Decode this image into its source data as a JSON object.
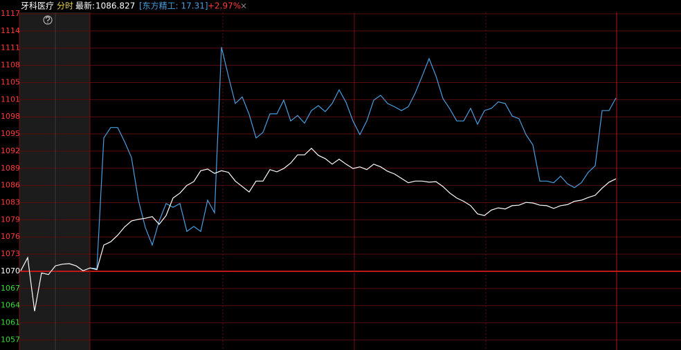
{
  "chart_data": {
    "type": "line",
    "title": "牙科医疗",
    "mode": "分时",
    "latest_label": "最新:",
    "latest": 1086.827,
    "compare_label": "[东方精工: 17.31]",
    "compare_change": {
      "value": 2.97,
      "label": "+2.97%"
    },
    "close_symbol": "×",
    "base": 1070,
    "ylim": [
      1055.6,
      1117.1
    ],
    "yticks": [
      {
        "value": 1117.1,
        "label": "1117"
      },
      {
        "value": 1113.96,
        "label": "1114"
      },
      {
        "value": 1110.82,
        "label": "1111"
      },
      {
        "value": 1107.68,
        "label": "1108"
      },
      {
        "value": 1104.54,
        "label": "1105"
      },
      {
        "value": 1101.4,
        "label": "1101"
      },
      {
        "value": 1098.26,
        "label": "1098"
      },
      {
        "value": 1095.12,
        "label": "1095"
      },
      {
        "value": 1091.98,
        "label": "1092"
      },
      {
        "value": 1088.84,
        "label": "1089"
      },
      {
        "value": 1085.7,
        "label": "1086"
      },
      {
        "value": 1082.56,
        "label": "1083"
      },
      {
        "value": 1079.42,
        "label": "1079"
      },
      {
        "value": 1076.28,
        "label": "1076"
      },
      {
        "value": 1073.14,
        "label": "1073"
      },
      1070,
      {
        "value": 1066.86,
        "label": "1067"
      },
      {
        "value": 1063.72,
        "label": "1064"
      },
      {
        "value": 1060.58,
        "label": "1061"
      },
      {
        "value": 1057.44,
        "label": "1057"
      }
    ],
    "grid": true,
    "series": [
      {
        "color": "#ffffff",
        "values": [
          1070.1,
          1072.5,
          1062.7,
          1069.7,
          1069.4,
          1071.0,
          1071.3,
          1071.4,
          1071.0,
          1070.1,
          1070.6,
          1070.3,
          1074.8,
          1075.4,
          1076.6,
          1078.1,
          1079.2,
          1079.5,
          1079.7,
          1080.0,
          1078.6,
          1080.2,
          1083.4,
          1084.3,
          1085.7,
          1086.4,
          1088.4,
          1088.7,
          1087.9,
          1088.4,
          1088.1,
          1086.5,
          1085.5,
          1084.5,
          1086.5,
          1086.5,
          1088.6,
          1088.2,
          1088.8,
          1089.8,
          1091.3,
          1091.3,
          1092.5,
          1091.2,
          1090.6,
          1089.6,
          1090.5,
          1089.6,
          1088.8,
          1089.1,
          1088.6,
          1089.6,
          1089.1,
          1088.3,
          1087.8,
          1087.0,
          1086.2,
          1086.5,
          1086.5,
          1086.3,
          1086.4,
          1085.5,
          1084.3,
          1083.4,
          1082.8,
          1082.0,
          1080.5,
          1080.2,
          1081.2,
          1081.6,
          1081.4,
          1082.0,
          1082.1,
          1082.6,
          1082.5,
          1082.1,
          1082.0,
          1081.5,
          1082.0,
          1082.2,
          1082.8,
          1083.0,
          1083.5,
          1083.9,
          1085.2,
          1086.3,
          1086.9
        ]
      },
      {
        "color": "#4a9fe0",
        "values": [
          null,
          null,
          null,
          null,
          null,
          null,
          null,
          null,
          null,
          null,
          1070.6,
          1070.5,
          1094.4,
          1096.3,
          1096.3,
          1093.7,
          1090.8,
          1083.0,
          1078.0,
          1074.8,
          1079.2,
          1082.4,
          1081.7,
          1082.4,
          1077.3,
          1078.2,
          1077.3,
          1083.0,
          1080.7,
          1111.0,
          1105.7,
          1100.7,
          1101.9,
          1098.7,
          1094.4,
          1095.4,
          1098.8,
          1098.8,
          1101.3,
          1097.5,
          1098.5,
          1097.1,
          1099.4,
          1100.3,
          1099.2,
          1100.7,
          1103.2,
          1100.9,
          1097.5,
          1095.0,
          1097.5,
          1101.3,
          1102.2,
          1100.7,
          1100.1,
          1099.4,
          1100.1,
          1102.6,
          1105.7,
          1108.9,
          1105.7,
          1101.6,
          1099.7,
          1097.5,
          1097.5,
          1099.8,
          1096.9,
          1099.4,
          1099.8,
          1101.0,
          1100.7,
          1098.4,
          1097.9,
          1095.0,
          1093.1,
          1086.5,
          1086.5,
          1086.2,
          1087.4,
          1086.0,
          1085.3,
          1086.2,
          1088.1,
          1089.3,
          1099.4,
          1099.4,
          1101.7
        ]
      }
    ]
  }
}
